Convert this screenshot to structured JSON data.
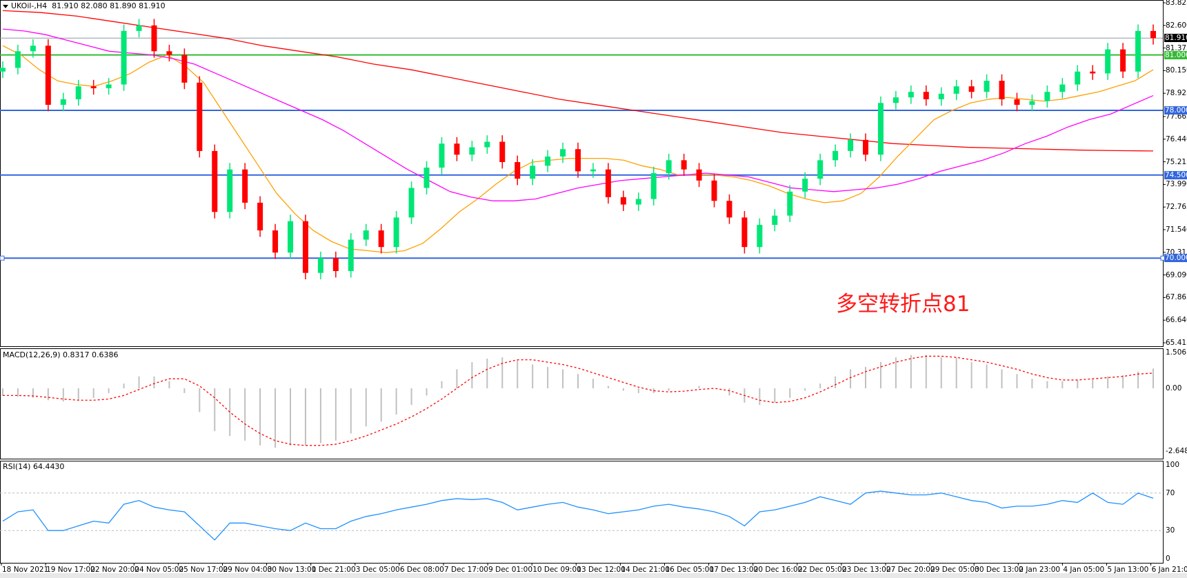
{
  "header": {
    "symbol": "UKOil-,H4",
    "ohlc_text": "81.910 82.080 81.890 81.910"
  },
  "annotation": "多空转折点81",
  "macd_header": "MACD(12,26,9) 0.8317 0.6386",
  "rsi_header": "RSI(14) 64.4430",
  "colors": {
    "bull": "#00e676",
    "bear": "#ff0000",
    "ma_slow": "#ff0000",
    "ma_fast": "#ffa000",
    "ma_mid": "#ff00ff",
    "level": "#3366dd",
    "level_81": "#33bb33",
    "current": "#8899aa",
    "rsi": "#1e90ff",
    "macd_hist": "#c0c0c0",
    "macd_signal": "#ff0000"
  },
  "chart_data": [
    {
      "type": "candlestick",
      "title": "UKOil-,H4",
      "ylim": [
        65.415,
        83.825
      ],
      "y_ticks": [
        "83.825",
        "82.600",
        "81.375",
        "80.150",
        "78.925",
        "77.665",
        "76.440",
        "75.215",
        "73.990",
        "72.765",
        "71.540",
        "70.315",
        "69.090",
        "67.865",
        "66.640",
        "65.415"
      ],
      "x_ticks": [
        "18 Nov 2021",
        "19 Nov 17:00",
        "22 Nov 20:00",
        "24 Nov 05:00",
        "25 Nov 17:00",
        "29 Nov 04:00",
        "30 Nov 13:00",
        "1 Dec 21:00",
        "3 Dec 05:00",
        "6 Dec 08:00",
        "7 Dec 17:00",
        "9 Dec 01:00",
        "10 Dec 09:00",
        "13 Dec 12:00",
        "14 Dec 21:00",
        "16 Dec 05:00",
        "17 Dec 13:00",
        "20 Dec 16:00",
        "22 Dec 05:00",
        "23 Dec 13:00",
        "27 Dec 20:00",
        "29 Dec 05:00",
        "30 Dec 13:00",
        "2 Jan 23:00",
        "4 Jan 05:00",
        "5 Jan 13:00",
        "6 Jan 21:00"
      ],
      "close": [
        80.3,
        81.2,
        81.5,
        78.3,
        78.6,
        79.3,
        79.2,
        79.4,
        82.3,
        82.6,
        81.2,
        81.0,
        79.5,
        75.8,
        72.5,
        74.8,
        73.0,
        71.5,
        70.3,
        72.0,
        69.2,
        70.0,
        69.3,
        71.0,
        71.5,
        70.6,
        72.2,
        73.8,
        74.9,
        76.2,
        75.6,
        76.0,
        76.3,
        75.2,
        74.3,
        75.0,
        75.5,
        75.9,
        74.7,
        74.8,
        73.3,
        72.9,
        73.2,
        74.6,
        75.3,
        74.8,
        74.2,
        73.1,
        72.2,
        70.6,
        71.8,
        72.3,
        73.6,
        74.3,
        75.3,
        75.8,
        76.4,
        75.6,
        78.4,
        78.7,
        79.0,
        78.6,
        78.9,
        79.3,
        79.0,
        79.6,
        78.6,
        78.3,
        78.5,
        79.0,
        79.4,
        80.1,
        80.0,
        81.3,
        80.1,
        82.3,
        81.91
      ],
      "moving_averages": [
        {
          "color_key": "ma_slow",
          "values": [
            83.4,
            83.3,
            83.1,
            82.8,
            82.5,
            82.2,
            81.9,
            81.5,
            81.2,
            80.9,
            80.5,
            80.2,
            79.8,
            79.4,
            79.0,
            78.6,
            78.3,
            78.0,
            77.7,
            77.4,
            77.1,
            76.8,
            76.6,
            76.4,
            76.2,
            76.1,
            76.0,
            75.95,
            75.9,
            75.85,
            75.82,
            75.8
          ]
        },
        {
          "color_key": "ma_fast",
          "values": [
            81.5,
            81.0,
            80.2,
            79.6,
            79.4,
            79.3,
            79.6,
            80.0,
            80.6,
            81.0,
            80.4,
            79.5,
            78.0,
            76.5,
            75.0,
            73.5,
            72.4,
            71.5,
            70.9,
            70.5,
            70.4,
            70.3,
            70.4,
            70.8,
            71.6,
            72.5,
            73.2,
            74.0,
            74.7,
            75.2,
            75.3,
            75.4,
            75.4,
            75.4,
            75.3,
            75.0,
            74.8,
            74.5,
            74.5,
            74.5,
            74.4,
            74.2,
            73.9,
            73.5,
            73.2,
            73.0,
            73.1,
            73.5,
            74.4,
            75.5,
            76.5,
            77.5,
            78.0,
            78.4,
            78.6,
            78.7,
            78.6,
            78.5,
            78.6,
            78.8,
            79.0,
            79.3,
            79.6,
            80.2
          ]
        },
        {
          "color_key": "ma_mid",
          "values": [
            82.4,
            82.3,
            82.1,
            81.8,
            81.5,
            81.2,
            81.1,
            81.0,
            80.8,
            80.5,
            80.0,
            79.5,
            79.0,
            78.5,
            78.0,
            77.5,
            76.9,
            76.2,
            75.5,
            74.8,
            74.2,
            73.6,
            73.3,
            73.1,
            73.1,
            73.2,
            73.5,
            73.8,
            74.0,
            74.2,
            74.3,
            74.4,
            74.5,
            74.6,
            74.5,
            74.4,
            74.1,
            73.8,
            73.7,
            73.6,
            73.7,
            73.8,
            74.0,
            74.3,
            74.7,
            75.0,
            75.3,
            75.7,
            76.2,
            76.6,
            77.1,
            77.5,
            77.8,
            78.3,
            78.8
          ]
        }
      ],
      "levels": [
        {
          "value": 81.91,
          "label": "81.910",
          "kind": "current"
        },
        {
          "value": 81.0,
          "label": "81.000",
          "kind": "level_81"
        },
        {
          "value": 78.0,
          "label": "78.000",
          "kind": "level"
        },
        {
          "value": 74.5,
          "label": "74.500",
          "kind": "level"
        },
        {
          "value": 70.0,
          "label": "70.000",
          "kind": "level"
        }
      ]
    },
    {
      "type": "bar",
      "title": "MACD(12,26,9)",
      "ylim": [
        -2.6487,
        1.5061
      ],
      "y_ticks": [
        "1.5061",
        "0.00",
        "-2.6487"
      ],
      "histogram": [
        -0.3,
        -0.35,
        -0.4,
        -0.5,
        -0.55,
        -0.5,
        -0.4,
        -0.2,
        0.2,
        0.5,
        0.5,
        0.3,
        -0.2,
        -1.0,
        -1.8,
        -2.0,
        -2.2,
        -2.4,
        -2.5,
        -2.4,
        -2.4,
        -2.3,
        -2.2,
        -1.9,
        -1.6,
        -1.4,
        -1.1,
        -0.7,
        -0.3,
        0.3,
        0.8,
        1.1,
        1.25,
        1.3,
        1.2,
        1.0,
        0.9,
        0.8,
        0.6,
        0.4,
        0.1,
        -0.1,
        -0.2,
        -0.2,
        -0.1,
        0.0,
        0.1,
        0.0,
        -0.3,
        -0.6,
        -0.7,
        -0.6,
        -0.4,
        -0.1,
        0.2,
        0.5,
        0.8,
        0.9,
        1.1,
        1.3,
        1.4,
        1.4,
        1.3,
        1.3,
        1.1,
        1.0,
        0.8,
        0.6,
        0.4,
        0.3,
        0.3,
        0.35,
        0.4,
        0.5,
        0.55,
        0.7,
        0.83
      ],
      "signal": [
        -0.3,
        -0.3,
        -0.32,
        -0.38,
        -0.45,
        -0.5,
        -0.5,
        -0.45,
        -0.3,
        -0.05,
        0.2,
        0.4,
        0.4,
        0.1,
        -0.4,
        -1.0,
        -1.5,
        -1.9,
        -2.2,
        -2.35,
        -2.4,
        -2.4,
        -2.35,
        -2.2,
        -2.0,
        -1.75,
        -1.5,
        -1.2,
        -0.85,
        -0.45,
        0.0,
        0.45,
        0.8,
        1.05,
        1.2,
        1.2,
        1.1,
        1.0,
        0.85,
        0.65,
        0.45,
        0.25,
        0.05,
        -0.1,
        -0.15,
        -0.12,
        -0.05,
        0.0,
        -0.1,
        -0.3,
        -0.5,
        -0.6,
        -0.55,
        -0.4,
        -0.15,
        0.15,
        0.45,
        0.7,
        0.9,
        1.1,
        1.25,
        1.35,
        1.35,
        1.3,
        1.2,
        1.1,
        0.95,
        0.8,
        0.6,
        0.45,
        0.35,
        0.35,
        0.4,
        0.45,
        0.5,
        0.6,
        0.64
      ]
    },
    {
      "type": "line",
      "title": "RSI(14)",
      "ylim": [
        0,
        100
      ],
      "y_ticks": [
        "100",
        "70",
        "30",
        "0"
      ],
      "levels": [
        70,
        30
      ],
      "values": [
        40,
        50,
        52,
        30,
        30,
        35,
        40,
        38,
        58,
        62,
        55,
        52,
        50,
        35,
        20,
        38,
        38,
        35,
        32,
        30,
        38,
        32,
        32,
        40,
        45,
        48,
        52,
        55,
        58,
        62,
        64,
        63,
        64,
        60,
        52,
        55,
        58,
        60,
        55,
        52,
        48,
        50,
        52,
        56,
        58,
        55,
        53,
        50,
        45,
        35,
        50,
        52,
        56,
        60,
        66,
        62,
        58,
        70,
        72,
        70,
        68,
        68,
        70,
        66,
        62,
        60,
        54,
        56,
        56,
        58,
        62,
        60,
        70,
        60,
        58,
        70,
        64.4
      ]
    }
  ]
}
